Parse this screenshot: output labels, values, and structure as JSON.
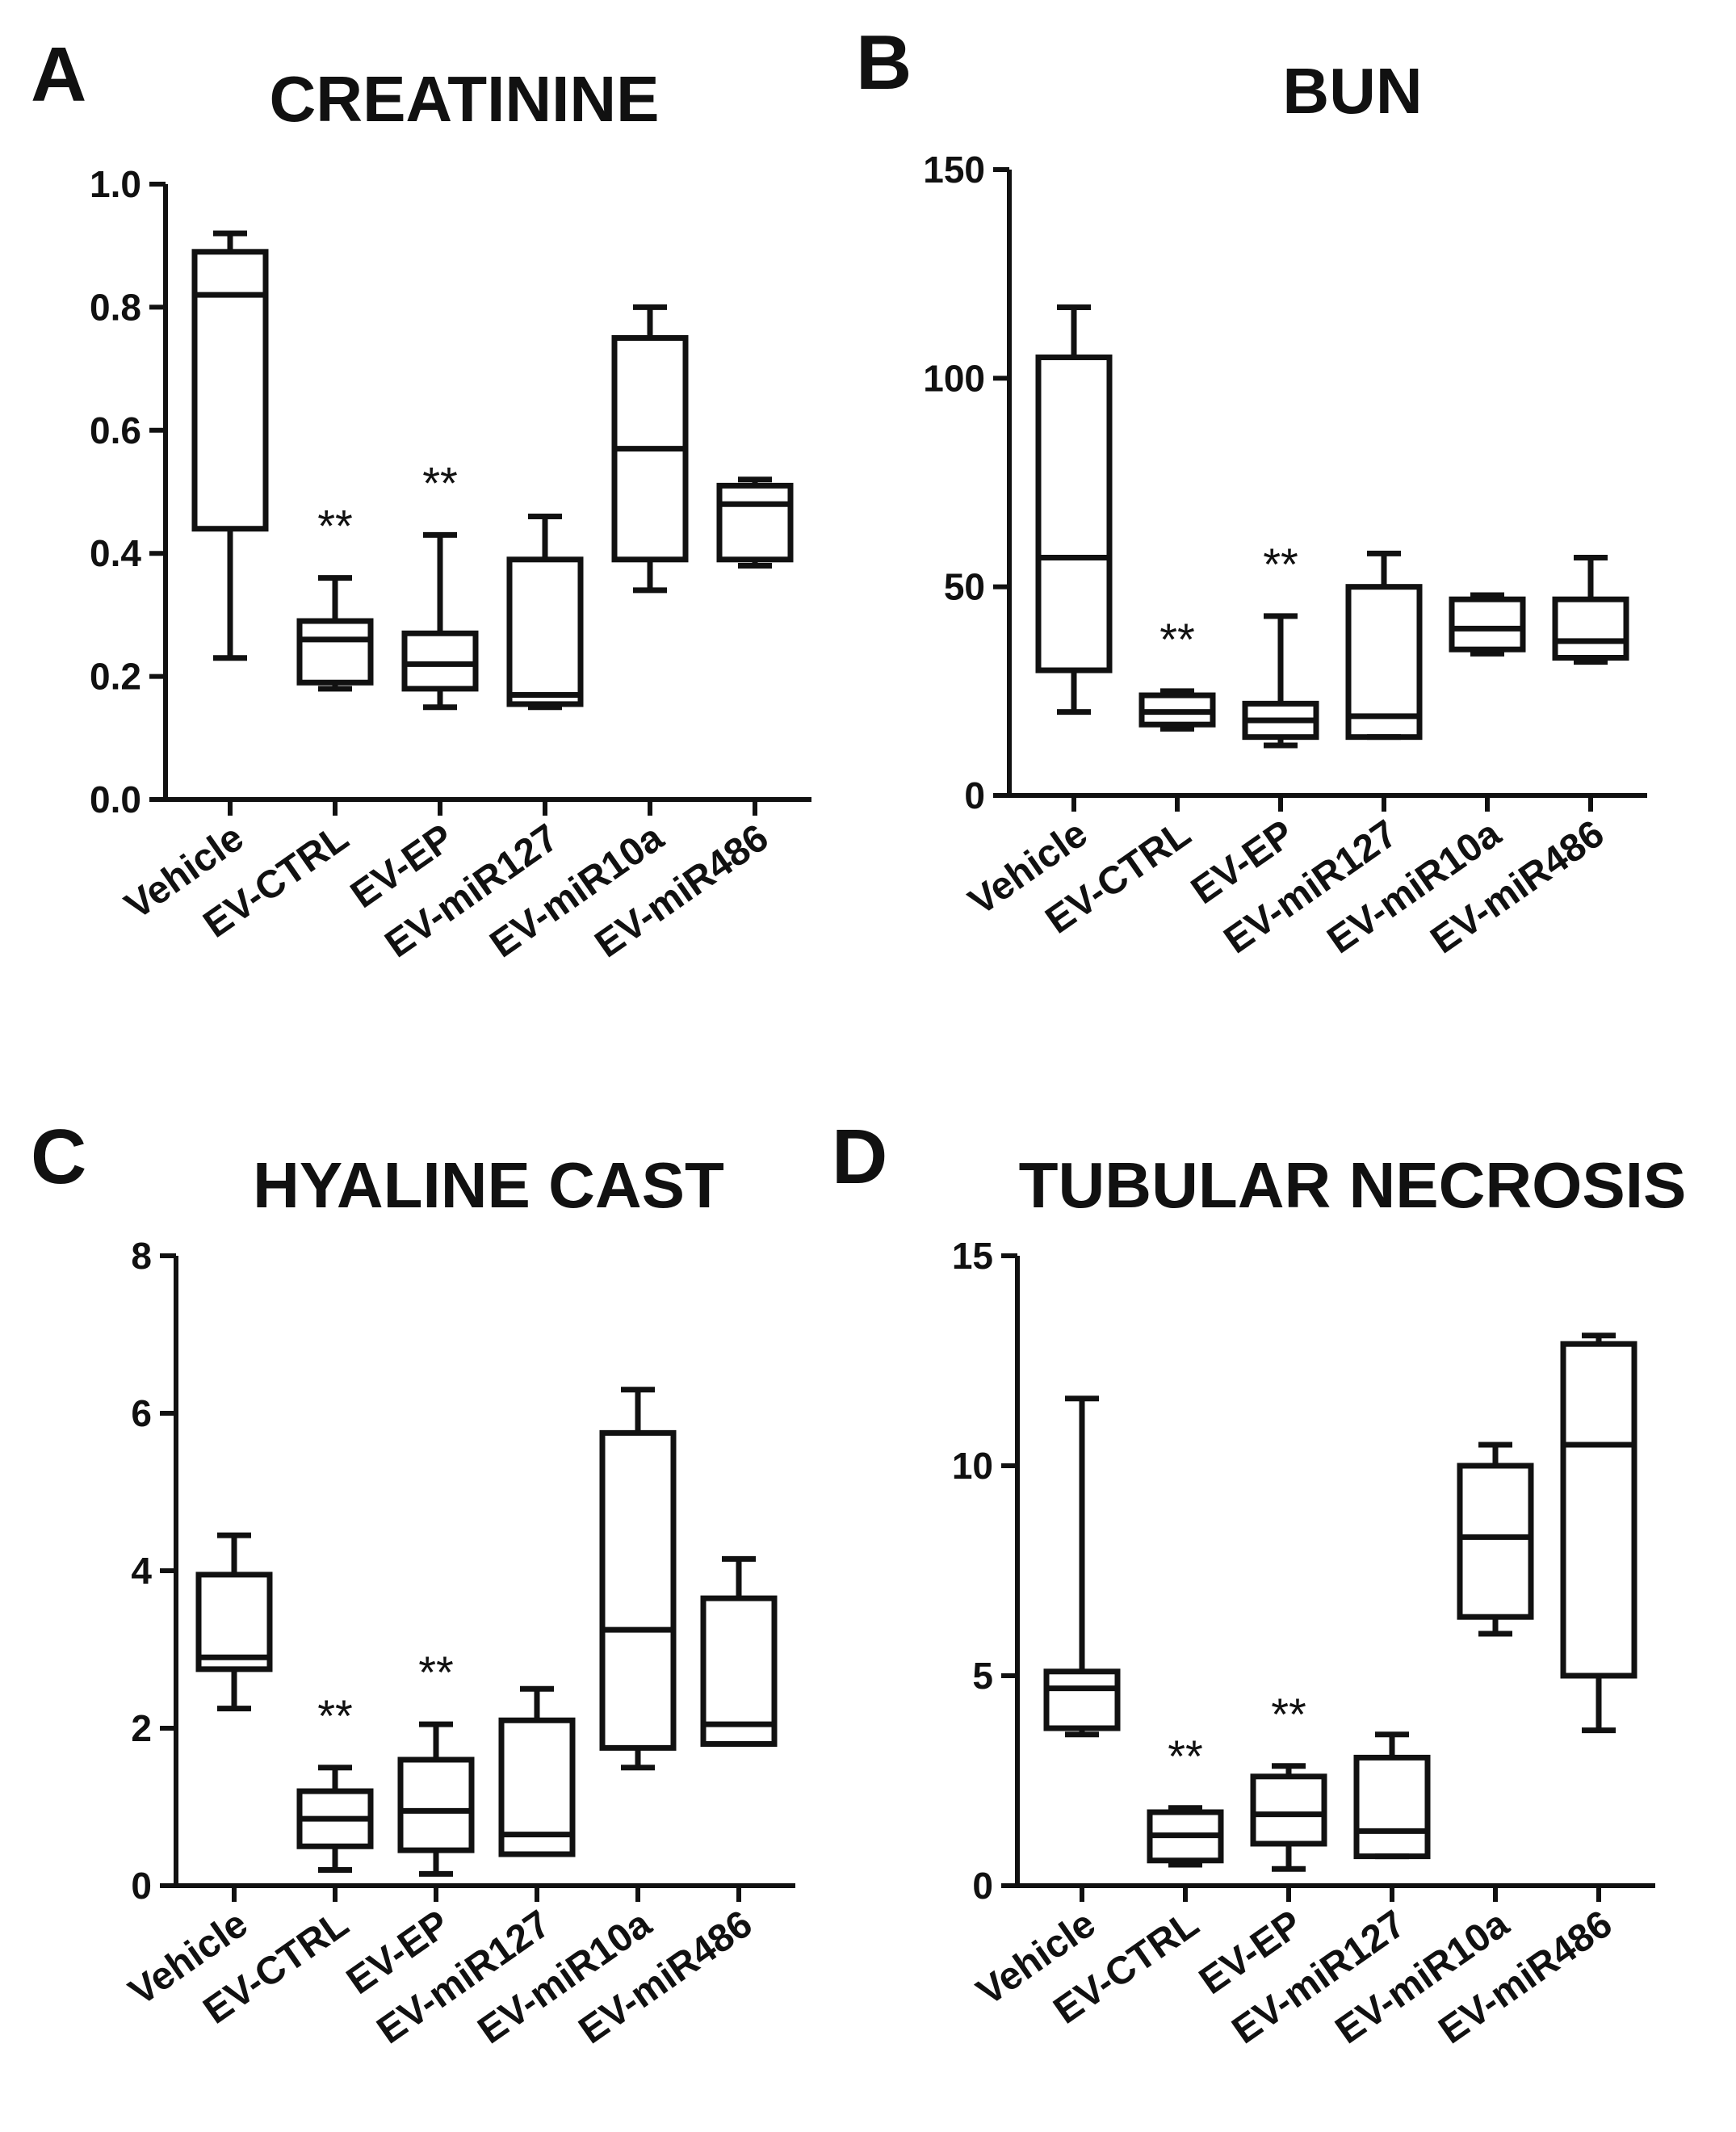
{
  "chart_data": [
    {
      "panel_label": "A",
      "type": "box",
      "title": "CREATININE",
      "categories": [
        "Vehicle",
        "EV-CTRL",
        "EV-EP",
        "EV-miR127",
        "EV-miR10a",
        "EV-miR486"
      ],
      "ylim": [
        0,
        1.0
      ],
      "yticks": [
        0.0,
        0.2,
        0.4,
        0.6,
        0.8,
        1.0
      ],
      "ytick_labels": [
        "0.0",
        "0.2",
        "0.4",
        "0.6",
        "0.8",
        "1.0"
      ],
      "boxes": [
        {
          "min": 0.23,
          "q1": 0.44,
          "median": 0.82,
          "q3": 0.89,
          "max": 0.92
        },
        {
          "min": 0.18,
          "q1": 0.19,
          "median": 0.26,
          "q3": 0.29,
          "max": 0.36
        },
        {
          "min": 0.15,
          "q1": 0.18,
          "median": 0.22,
          "q3": 0.27,
          "max": 0.43
        },
        {
          "min": 0.15,
          "q1": 0.155,
          "median": 0.17,
          "q3": 0.39,
          "max": 0.46
        },
        {
          "min": 0.34,
          "q1": 0.39,
          "median": 0.57,
          "q3": 0.75,
          "max": 0.8
        },
        {
          "min": 0.38,
          "q1": 0.39,
          "median": 0.48,
          "q3": 0.51,
          "max": 0.52
        }
      ],
      "annotations": [
        "",
        "**",
        "**",
        "",
        "",
        ""
      ]
    },
    {
      "panel_label": "B",
      "type": "box",
      "title": "BUN",
      "categories": [
        "Vehicle",
        "EV-CTRL",
        "EV-EP",
        "EV-miR127",
        "EV-miR10a",
        "EV-miR486"
      ],
      "ylim": [
        0,
        150
      ],
      "yticks": [
        0,
        50,
        100,
        150
      ],
      "ytick_labels": [
        "0",
        "50",
        "100",
        "150"
      ],
      "boxes": [
        {
          "min": 20,
          "q1": 30,
          "median": 57,
          "q3": 105,
          "max": 117
        },
        {
          "min": 16,
          "q1": 17,
          "median": 20,
          "q3": 24,
          "max": 25
        },
        {
          "min": 12,
          "q1": 14,
          "median": 18,
          "q3": 22,
          "max": 43
        },
        {
          "min": 14,
          "q1": 14,
          "median": 19,
          "q3": 50,
          "max": 58
        },
        {
          "min": 34,
          "q1": 35,
          "median": 40,
          "q3": 47,
          "max": 48
        },
        {
          "min": 32,
          "q1": 33,
          "median": 37,
          "q3": 47,
          "max": 57
        }
      ],
      "annotations": [
        "",
        "**",
        "**",
        "",
        "",
        ""
      ]
    },
    {
      "panel_label": "C",
      "type": "box",
      "title": "HYALINE CAST",
      "categories": [
        "Vehicle",
        "EV-CTRL",
        "EV-EP",
        "EV-miR127",
        "EV-miR10a",
        "EV-miR486"
      ],
      "ylim": [
        0,
        8
      ],
      "yticks": [
        0,
        2,
        4,
        6,
        8
      ],
      "ytick_labels": [
        "0",
        "2",
        "4",
        "6",
        "8"
      ],
      "boxes": [
        {
          "min": 2.25,
          "q1": 2.75,
          "median": 2.9,
          "q3": 3.95,
          "max": 4.45
        },
        {
          "min": 0.2,
          "q1": 0.5,
          "median": 0.85,
          "q3": 1.2,
          "max": 1.5
        },
        {
          "min": 0.15,
          "q1": 0.45,
          "median": 0.95,
          "q3": 1.6,
          "max": 2.05
        },
        {
          "min": 0.4,
          "q1": 0.4,
          "median": 0.65,
          "q3": 2.1,
          "max": 2.5
        },
        {
          "min": 1.5,
          "q1": 1.75,
          "median": 3.25,
          "q3": 5.75,
          "max": 6.3
        },
        {
          "min": 1.8,
          "q1": 1.8,
          "median": 2.05,
          "q3": 3.65,
          "max": 4.15
        }
      ],
      "annotations": [
        "",
        "**",
        "**",
        "",
        "",
        ""
      ]
    },
    {
      "panel_label": "D",
      "type": "box",
      "title": "TUBULAR NECROSIS",
      "categories": [
        "Vehicle",
        "EV-CTRL",
        "EV-EP",
        "EV-miR127",
        "EV-miR10a",
        "EV-miR486"
      ],
      "ylim": [
        0,
        15
      ],
      "yticks": [
        0,
        5,
        10,
        15
      ],
      "ytick_labels": [
        "0",
        "5",
        "10",
        "15"
      ],
      "boxes": [
        {
          "min": 3.6,
          "q1": 3.75,
          "median": 4.7,
          "q3": 5.1,
          "max": 11.6
        },
        {
          "min": 0.5,
          "q1": 0.6,
          "median": 1.2,
          "q3": 1.75,
          "max": 1.85
        },
        {
          "min": 0.4,
          "q1": 1.0,
          "median": 1.7,
          "q3": 2.6,
          "max": 2.85
        },
        {
          "min": 0.7,
          "q1": 0.7,
          "median": 1.3,
          "q3": 3.05,
          "max": 3.6
        },
        {
          "min": 6.0,
          "q1": 6.4,
          "median": 8.3,
          "q3": 10.0,
          "max": 10.5
        },
        {
          "min": 3.7,
          "q1": 5.0,
          "median": 10.5,
          "q3": 12.9,
          "max": 13.1
        }
      ],
      "annotations": [
        "",
        "**",
        "**",
        "",
        "",
        ""
      ]
    }
  ]
}
